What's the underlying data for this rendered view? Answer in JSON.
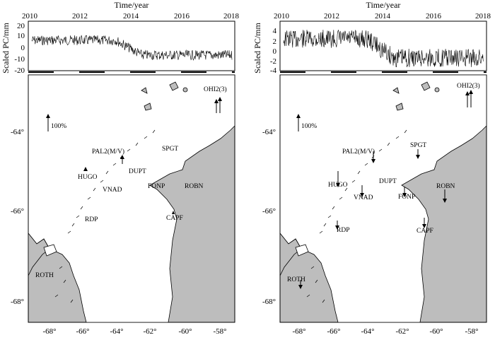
{
  "top_axis_title": "Time/year",
  "y_axis_title": "Scaled PC/mm",
  "year_ticks": [
    "2010",
    "2012",
    "2014",
    "2016",
    "2018"
  ],
  "lon_ticks": [
    "-68°",
    "-66°",
    "-64°",
    "-62°",
    "-60°",
    "-58°"
  ],
  "lat_ticks": [
    "-64°",
    "-66°",
    "-68°"
  ],
  "scale_label": "100%",
  "panels": [
    {
      "id": "left",
      "yticks": [
        "20",
        "10",
        "0",
        "-10",
        "-20"
      ],
      "stations": [
        {
          "name": "OHI2(3)",
          "arrow": "up-long"
        },
        {
          "name": "PAL2(M/V)",
          "arrow": "up"
        },
        {
          "name": "SPGT",
          "arrow": "none"
        },
        {
          "name": "DUPT",
          "arrow": "none"
        },
        {
          "name": "HUGO",
          "arrow": "up"
        },
        {
          "name": "VNAD",
          "arrow": "none"
        },
        {
          "name": "FONP",
          "arrow": "none"
        },
        {
          "name": "ROBN",
          "arrow": "none"
        },
        {
          "name": "CAPF",
          "arrow": "up"
        },
        {
          "name": "RDP",
          "arrow": "none"
        },
        {
          "name": "ROTH",
          "arrow": "none"
        }
      ]
    },
    {
      "id": "right",
      "yticks": [
        "4",
        "2",
        "0",
        "-2",
        "-4"
      ],
      "stations": [
        {
          "name": "OHI2(3)",
          "arrow": "up-long"
        },
        {
          "name": "PAL2(M/V)",
          "arrow": "down"
        },
        {
          "name": "SPGT",
          "arrow": "down"
        },
        {
          "name": "DUPT",
          "arrow": "none"
        },
        {
          "name": "HUGO",
          "arrow": "down-long"
        },
        {
          "name": "VNAD",
          "arrow": "down"
        },
        {
          "name": "FONP",
          "arrow": "down"
        },
        {
          "name": "ROBN",
          "arrow": "down-long"
        },
        {
          "name": "CAPF",
          "arrow": "down"
        },
        {
          "name": "RDP",
          "arrow": "down"
        },
        {
          "name": "ROTH",
          "arrow": "down"
        }
      ]
    }
  ],
  "colors": {
    "land": "#bdbdbd",
    "sea": "#ffffff",
    "line": "#000000"
  }
}
